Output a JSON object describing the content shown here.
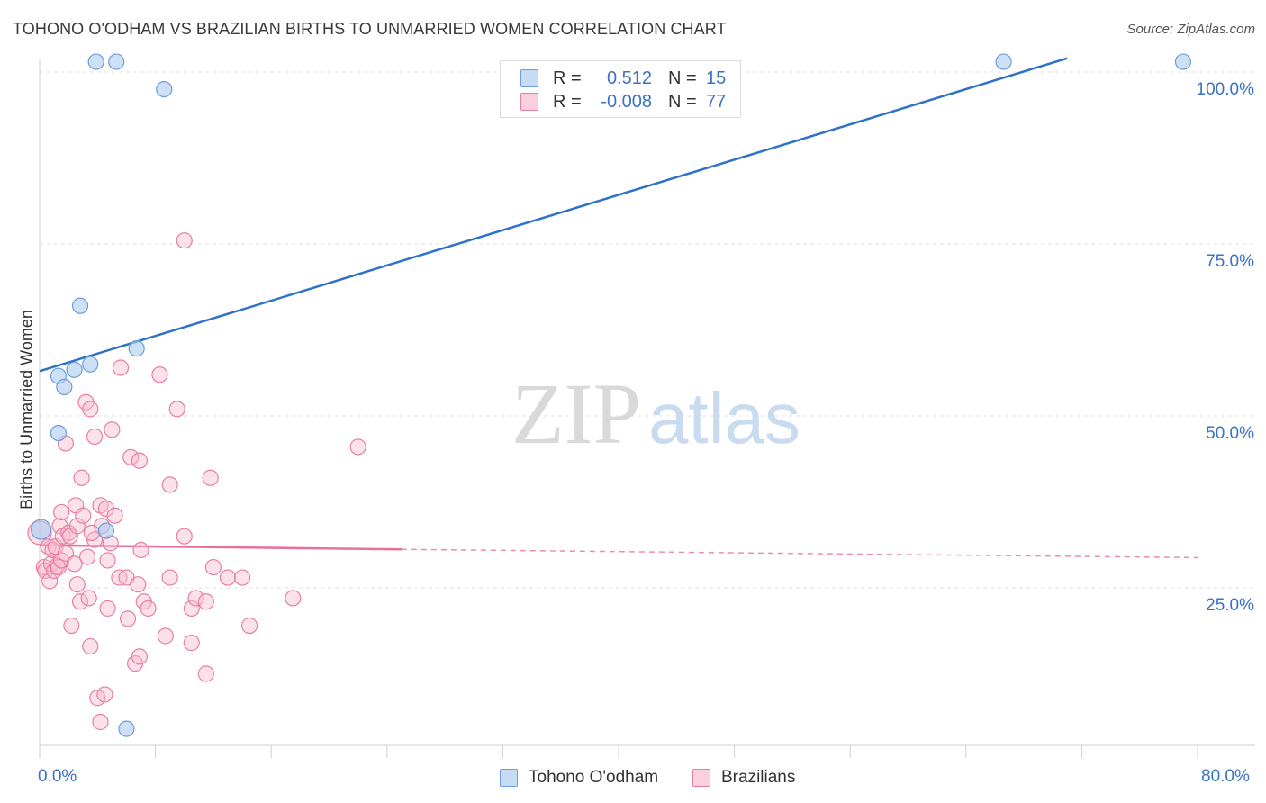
{
  "title": "TOHONO O'ODHAM VS BRAZILIAN BIRTHS TO UNMARRIED WOMEN CORRELATION CHART",
  "source": "Source: ZipAtlas.com",
  "watermark": {
    "zip": "ZIP",
    "atlas": "atlas"
  },
  "legend": {
    "rows": [
      {
        "r_label": "R =",
        "r_value": "0.512",
        "n_label": "N =",
        "n_value": "15"
      },
      {
        "r_label": "R =",
        "r_value": "-0.008",
        "n_label": "N =",
        "n_value": "77"
      }
    ]
  },
  "bottom_legend": [
    "Tohono O'odham",
    "Brazilians"
  ],
  "x_labels": {
    "left": "0.0%",
    "right": "80.0%"
  },
  "colors": {
    "blue_fill": "#aecbee",
    "blue_stroke": "#6b9edb",
    "blue_line": "#2f72c8",
    "pink_fill": "#f7bdd0",
    "pink_stroke": "#e87fa3",
    "pink_line": "#e8719a",
    "axis_text": "#3a72c4",
    "grid": "#e2e2e2"
  },
  "chart_data": {
    "type": "scatter",
    "title": "TOHONO O'ODHAM VS BRAZILIAN BIRTHS TO UNMARRIED WOMEN CORRELATION CHART",
    "xlabel": "",
    "ylabel": "Births to Unmarried Women",
    "xlim": [
      0,
      80
    ],
    "ylim": [
      0,
      102
    ],
    "y_ticks": [
      {
        "value": 25,
        "label": "25.0%"
      },
      {
        "value": 50,
        "label": "50.0%"
      },
      {
        "value": 75,
        "label": "75.0%"
      },
      {
        "value": 100,
        "label": "100.0%"
      }
    ],
    "x_ticks": [
      0,
      8,
      16,
      24,
      32,
      40,
      48,
      56,
      64,
      72,
      80
    ],
    "series": [
      {
        "name": "Tohono O'odham",
        "color": "blue",
        "r": 0.512,
        "n": 15,
        "trend": {
          "x0": 0,
          "y0": 56.5,
          "x1": 71,
          "y1": 102,
          "dashed_to": null
        },
        "points": [
          [
            0.1,
            33.5
          ],
          [
            1.3,
            47.5
          ],
          [
            1.3,
            55.8
          ],
          [
            1.7,
            54.2
          ],
          [
            2.4,
            56.7
          ],
          [
            2.8,
            66.0
          ],
          [
            3.5,
            57.5
          ],
          [
            4.6,
            33.3
          ],
          [
            3.9,
            101.5
          ],
          [
            5.3,
            101.5
          ],
          [
            8.6,
            97.5
          ],
          [
            6.7,
            59.8
          ],
          [
            6.0,
            4.5
          ],
          [
            66.6,
            101.5
          ],
          [
            79.0,
            101.5
          ]
        ]
      },
      {
        "name": "Brazilians",
        "color": "pink",
        "r": -0.008,
        "n": 77,
        "trend": {
          "x0": 0,
          "y0": 31.2,
          "x1": 25,
          "y1": 30.6,
          "x_end": 80,
          "y_end": 29.4
        },
        "points": [
          [
            0.0,
            33.0
          ],
          [
            0.3,
            28.0
          ],
          [
            0.4,
            27.5
          ],
          [
            0.6,
            31.0
          ],
          [
            0.7,
            26.0
          ],
          [
            0.8,
            28.5
          ],
          [
            0.9,
            30.5
          ],
          [
            1.0,
            27.5
          ],
          [
            1.1,
            31.0
          ],
          [
            1.2,
            28.2
          ],
          [
            1.3,
            28.0
          ],
          [
            1.4,
            34.0
          ],
          [
            1.5,
            36.0
          ],
          [
            1.5,
            29.0
          ],
          [
            1.6,
            32.5
          ],
          [
            1.8,
            30.0
          ],
          [
            1.8,
            46.0
          ],
          [
            2.0,
            33.0
          ],
          [
            2.1,
            32.5
          ],
          [
            2.2,
            19.5
          ],
          [
            2.4,
            28.5
          ],
          [
            2.5,
            37.0
          ],
          [
            2.6,
            34.0
          ],
          [
            2.6,
            25.5
          ],
          [
            2.8,
            23.0
          ],
          [
            2.9,
            41.0
          ],
          [
            3.0,
            35.5
          ],
          [
            3.2,
            52.0
          ],
          [
            3.3,
            29.5
          ],
          [
            3.4,
            23.5
          ],
          [
            3.5,
            51.0
          ],
          [
            3.5,
            16.5
          ],
          [
            3.8,
            32.0
          ],
          [
            3.8,
            47.0
          ],
          [
            4.0,
            9.0
          ],
          [
            4.2,
            37.0
          ],
          [
            4.2,
            5.5
          ],
          [
            4.3,
            34.0
          ],
          [
            4.5,
            9.5
          ],
          [
            4.6,
            36.5
          ],
          [
            4.7,
            29.0
          ],
          [
            4.7,
            22.0
          ],
          [
            4.9,
            31.5
          ],
          [
            5.0,
            48.0
          ],
          [
            5.2,
            35.5
          ],
          [
            5.5,
            26.5
          ],
          [
            5.6,
            57.0
          ],
          [
            6.0,
            26.5
          ],
          [
            6.1,
            20.5
          ],
          [
            6.3,
            44.0
          ],
          [
            6.6,
            14.0
          ],
          [
            6.8,
            25.5
          ],
          [
            6.9,
            15.0
          ],
          [
            6.9,
            43.5
          ],
          [
            7.0,
            30.5
          ],
          [
            7.2,
            23.0
          ],
          [
            7.5,
            22.0
          ],
          [
            8.3,
            56.0
          ],
          [
            8.7,
            18.0
          ],
          [
            9.0,
            26.5
          ],
          [
            9.0,
            40.0
          ],
          [
            9.5,
            51.0
          ],
          [
            10.0,
            75.5
          ],
          [
            10.0,
            32.5
          ],
          [
            10.5,
            22.0
          ],
          [
            10.5,
            17.0
          ],
          [
            10.8,
            23.5
          ],
          [
            11.5,
            12.5
          ],
          [
            11.5,
            23.0
          ],
          [
            11.8,
            41.0
          ],
          [
            12.0,
            28.0
          ],
          [
            13.0,
            26.5
          ],
          [
            14.0,
            26.5
          ],
          [
            14.5,
            19.5
          ],
          [
            17.5,
            23.5
          ],
          [
            22.0,
            45.5
          ],
          [
            3.6,
            33.0
          ]
        ]
      }
    ]
  }
}
